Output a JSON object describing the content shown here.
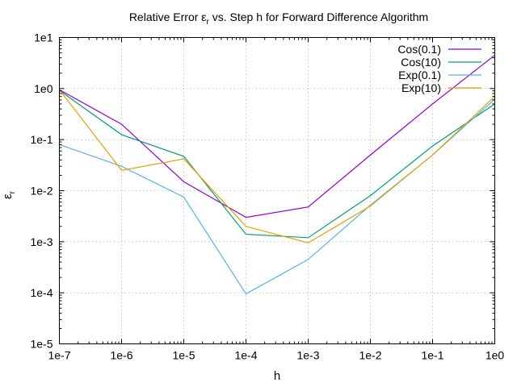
{
  "chart_data": {
    "type": "line",
    "title": "Relative Error ε",
    "title_sub": "r",
    "title_rest": " vs. Step h for Forward Difference Algorithm",
    "xlabel": "h",
    "ylabel": "ε",
    "ylabel_sub": "r",
    "x_scale": "log",
    "y_scale": "log",
    "xlim": [
      1e-07,
      1
    ],
    "ylim": [
      1e-05,
      10
    ],
    "grid": true,
    "legend_position": "top-right",
    "x_ticks": [
      {
        "value": 1e-07,
        "label": "1e-7"
      },
      {
        "value": 1e-06,
        "label": "1e-6"
      },
      {
        "value": 1e-05,
        "label": "1e-5"
      },
      {
        "value": 0.0001,
        "label": "1e-4"
      },
      {
        "value": 0.001,
        "label": "1e-3"
      },
      {
        "value": 0.01,
        "label": "1e-2"
      },
      {
        "value": 0.1,
        "label": "1e-1"
      },
      {
        "value": 1,
        "label": "1e0"
      }
    ],
    "y_ticks": [
      {
        "value": 10,
        "label": "1e1"
      },
      {
        "value": 1,
        "label": "1e0"
      },
      {
        "value": 0.1,
        "label": "1e-1"
      },
      {
        "value": 0.01,
        "label": "1e-2"
      },
      {
        "value": 0.001,
        "label": "1e-3"
      },
      {
        "value": 0.0001,
        "label": "1e-4"
      },
      {
        "value": 1e-05,
        "label": "1e-5"
      }
    ],
    "x": [
      1e-07,
      1e-06,
      1e-05,
      0.0001,
      0.001,
      0.01,
      0.1,
      1
    ],
    "series": [
      {
        "name": "Cos(0.1)",
        "color": "#9400d3",
        "values": [
          0.95,
          0.2,
          0.015,
          0.003,
          0.0048,
          0.05,
          0.5,
          4.5
        ]
      },
      {
        "name": "Cos(10)",
        "color": "#009e73",
        "values": [
          0.92,
          0.125,
          0.047,
          0.0014,
          0.0012,
          0.008,
          0.075,
          0.5
        ]
      },
      {
        "name": "Exp(0.1)",
        "color": "#56b4e9",
        "values": [
          0.08,
          0.03,
          0.0075,
          9.5e-05,
          0.00045,
          0.0052,
          0.05,
          0.62
        ]
      },
      {
        "name": "Exp(10)",
        "color": "#e69f00",
        "values": [
          0.95,
          0.025,
          0.042,
          0.002,
          0.00095,
          0.005,
          0.05,
          0.7
        ]
      }
    ]
  }
}
